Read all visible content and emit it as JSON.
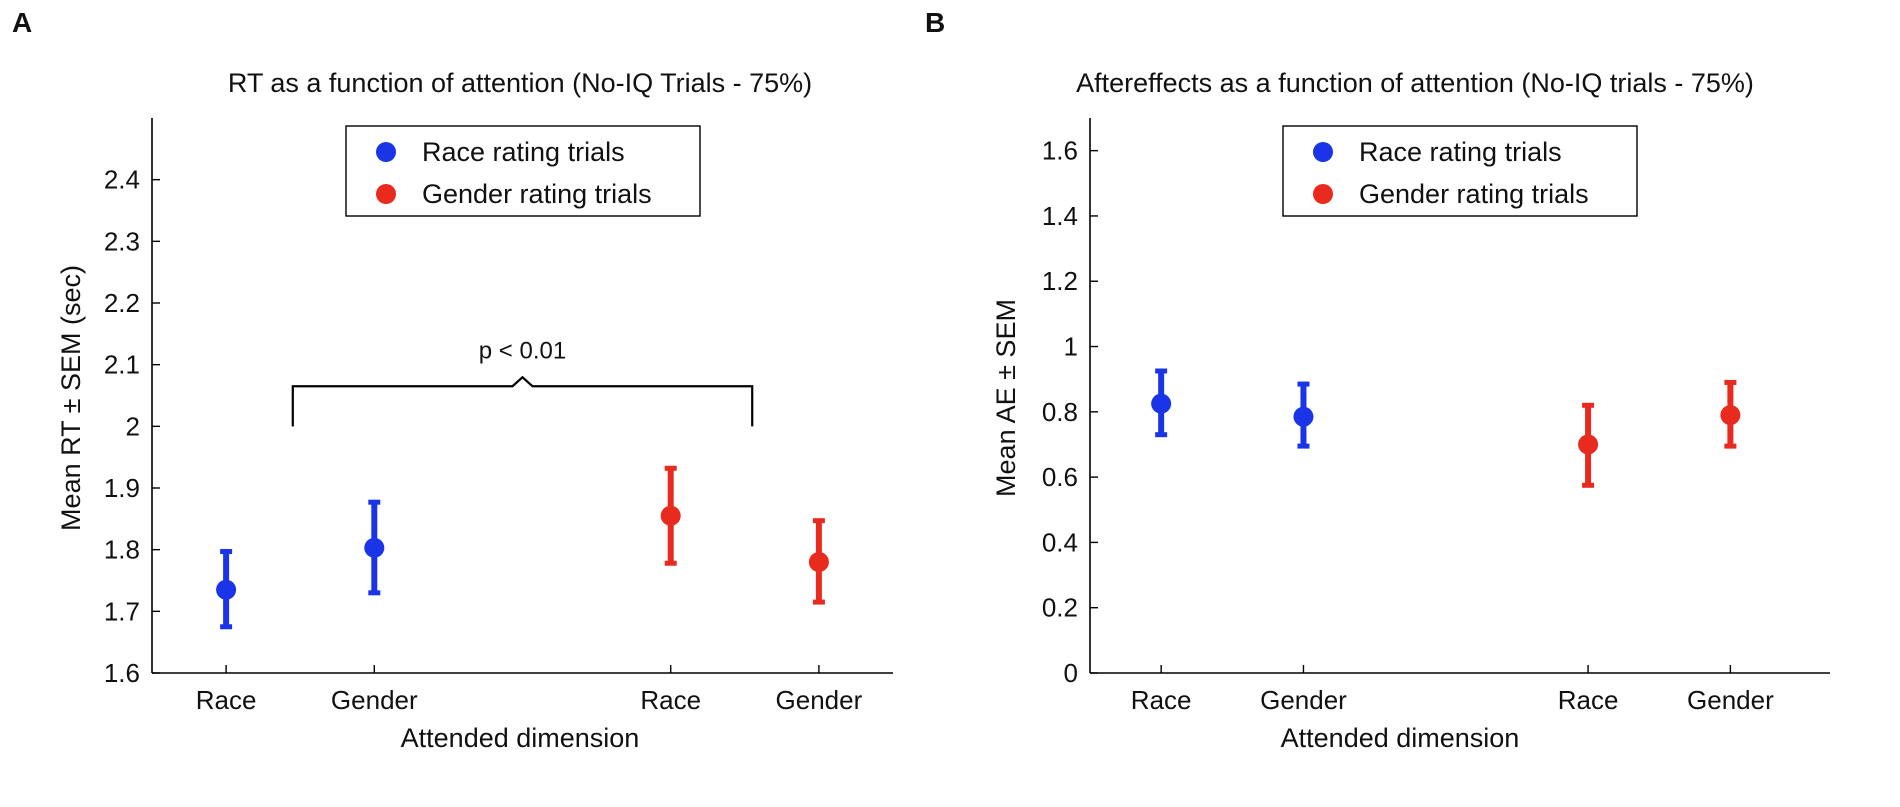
{
  "panels": [
    {
      "label": "A",
      "chart_data": {
        "type": "scatter",
        "title": "RT as a function of attention (No-IQ Trials - 75%)",
        "xlabel": "Attended dimension",
        "ylabel": "Mean RT ± SEM (sec)",
        "ylim": [
          1.6,
          2.5
        ],
        "yticks": [
          1.6,
          1.7,
          1.8,
          1.9,
          2,
          2.1,
          2.2,
          2.3,
          2.4
        ],
        "ytick_labels": [
          "1.6",
          "1.7",
          "1.8",
          "1.9",
          "2",
          "2.1",
          "2.2",
          "2.3",
          "2.4"
        ],
        "xlim": [
          0.5,
          5.5
        ],
        "categories": [
          {
            "x": 1,
            "label": "Race"
          },
          {
            "x": 2,
            "label": "Gender"
          },
          {
            "x": 4,
            "label": "Race"
          },
          {
            "x": 5,
            "label": "Gender"
          }
        ],
        "legend_position": "top-center",
        "series": [
          {
            "name": "Race rating trials",
            "color": "#1a35e8",
            "points": [
              {
                "x": 1,
                "y": 1.735,
                "err_low": 1.675,
                "err_high": 1.797
              },
              {
                "x": 2,
                "y": 1.803,
                "err_low": 1.73,
                "err_high": 1.877
              }
            ]
          },
          {
            "name": "Gender rating trials",
            "color": "#e82a1f",
            "points": [
              {
                "x": 4,
                "y": 1.855,
                "err_low": 1.778,
                "err_high": 1.932
              },
              {
                "x": 5,
                "y": 1.78,
                "err_low": 1.715,
                "err_high": 1.847
              }
            ]
          }
        ],
        "annotations": [
          {
            "type": "bracket",
            "text": "p < 0.01",
            "x_start": 1.45,
            "x_end": 4.55,
            "y_bottom": 2.0,
            "y_top": 2.065
          }
        ]
      }
    },
    {
      "label": "B",
      "chart_data": {
        "type": "scatter",
        "title": "Aftereffects as a function of attention (No-IQ trials - 75%)",
        "xlabel": "Attended dimension",
        "ylabel": "Mean AE ± SEM",
        "ylim": [
          0,
          1.7
        ],
        "yticks": [
          0,
          0.2,
          0.4,
          0.6,
          0.8,
          1,
          1.2,
          1.4,
          1.6
        ],
        "ytick_labels": [
          "0",
          "0.2",
          "0.4",
          "0.6",
          "0.8",
          "1",
          "1.2",
          "1.4",
          "1.6"
        ],
        "xlim": [
          0.5,
          5.7
        ],
        "categories": [
          {
            "x": 1,
            "label": "Race"
          },
          {
            "x": 2,
            "label": "Gender"
          },
          {
            "x": 4,
            "label": "Race"
          },
          {
            "x": 5,
            "label": "Gender"
          }
        ],
        "legend_position": "top-center",
        "series": [
          {
            "name": "Race rating trials",
            "color": "#1a35e8",
            "points": [
              {
                "x": 1,
                "y": 0.825,
                "err_low": 0.73,
                "err_high": 0.925
              },
              {
                "x": 2,
                "y": 0.785,
                "err_low": 0.695,
                "err_high": 0.885
              }
            ]
          },
          {
            "name": "Gender rating trials",
            "color": "#e82a1f",
            "points": [
              {
                "x": 4,
                "y": 0.7,
                "err_low": 0.575,
                "err_high": 0.82
              },
              {
                "x": 5,
                "y": 0.79,
                "err_low": 0.695,
                "err_high": 0.89
              }
            ]
          }
        ],
        "annotations": []
      }
    }
  ]
}
